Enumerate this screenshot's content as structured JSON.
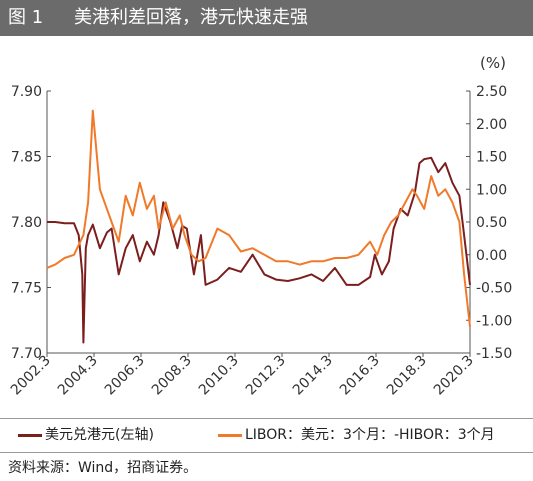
{
  "header": {
    "figure_no": "图 1",
    "title": "美港利差回落，港元快速走强"
  },
  "colors": {
    "hkd": "#7b1e1e",
    "spread": "#f07a2a",
    "title_bg": "#6b6b6b"
  },
  "chart_data": {
    "type": "line",
    "unit_right": "(%)",
    "x_tick_labels": [
      "2002.3",
      "2004.3",
      "2006.3",
      "2008.3",
      "2010.3",
      "2012.3",
      "2014.3",
      "2016.3",
      "2018.3",
      "2020.3"
    ],
    "x_range": [
      2002.25,
      2020.25
    ],
    "y_left": {
      "ticks": [
        "7.90",
        "7.85",
        "7.80",
        "7.75",
        "7.70"
      ],
      "range": [
        7.7,
        7.9
      ]
    },
    "y_right": {
      "ticks": [
        "2.50",
        "2.00",
        "1.50",
        "1.00",
        "0.50",
        "0.00",
        "-0.50",
        "-1.00",
        "-1.50"
      ],
      "range": [
        -1.5,
        2.5
      ]
    },
    "series": [
      {
        "name": "美元兑港元(左轴)",
        "axis": "left",
        "color": "#7b1e1e",
        "x": [
          2002.25,
          2002.6,
          2003.0,
          2003.4,
          2003.6,
          2003.75,
          2003.8,
          2003.9,
          2004.0,
          2004.2,
          2004.5,
          2004.8,
          2005.0,
          2005.3,
          2005.6,
          2005.9,
          2006.2,
          2006.5,
          2006.8,
          2007.0,
          2007.2,
          2007.5,
          2007.8,
          2008.0,
          2008.2,
          2008.5,
          2008.8,
          2009.0,
          2009.5,
          2010.0,
          2010.5,
          2011.0,
          2011.5,
          2012.0,
          2012.5,
          2013.0,
          2013.5,
          2014.0,
          2014.5,
          2015.0,
          2015.5,
          2016.0,
          2016.2,
          2016.5,
          2016.8,
          2017.0,
          2017.3,
          2017.6,
          2017.9,
          2018.1,
          2018.3,
          2018.6,
          2018.9,
          2019.2,
          2019.5,
          2019.8,
          2020.0,
          2020.25
        ],
        "y": [
          7.8,
          7.8,
          7.799,
          7.799,
          7.79,
          7.76,
          7.708,
          7.78,
          7.79,
          7.798,
          7.78,
          7.792,
          7.795,
          7.76,
          7.78,
          7.79,
          7.77,
          7.785,
          7.775,
          7.79,
          7.815,
          7.8,
          7.78,
          7.797,
          7.795,
          7.76,
          7.79,
          7.752,
          7.756,
          7.765,
          7.762,
          7.775,
          7.76,
          7.756,
          7.755,
          7.757,
          7.76,
          7.755,
          7.765,
          7.752,
          7.752,
          7.758,
          7.775,
          7.76,
          7.77,
          7.795,
          7.81,
          7.805,
          7.822,
          7.845,
          7.848,
          7.849,
          7.838,
          7.845,
          7.83,
          7.82,
          7.79,
          7.752
        ]
      },
      {
        "name": "LIBOR：美元：3个月：-HIBOR：3个月",
        "axis": "right",
        "color": "#f07a2a",
        "x": [
          2002.25,
          2002.6,
          2003.0,
          2003.4,
          2003.8,
          2004.0,
          2004.2,
          2004.5,
          2004.8,
          2005.0,
          2005.3,
          2005.6,
          2005.9,
          2006.2,
          2006.5,
          2006.8,
          2007.0,
          2007.3,
          2007.6,
          2007.9,
          2008.1,
          2008.4,
          2008.7,
          2009.0,
          2009.5,
          2010.0,
          2010.5,
          2011.0,
          2011.5,
          2012.0,
          2012.5,
          2013.0,
          2013.5,
          2014.0,
          2014.5,
          2015.0,
          2015.5,
          2016.0,
          2016.3,
          2016.6,
          2016.9,
          2017.2,
          2017.5,
          2017.8,
          2018.0,
          2018.3,
          2018.6,
          2018.9,
          2019.2,
          2019.5,
          2019.8,
          2020.0,
          2020.25
        ],
        "y": [
          -0.2,
          -0.15,
          -0.05,
          0.0,
          0.3,
          0.8,
          2.2,
          1.0,
          0.7,
          0.5,
          0.2,
          0.9,
          0.6,
          1.1,
          0.7,
          0.9,
          0.4,
          0.8,
          0.4,
          0.6,
          0.3,
          0.0,
          -0.1,
          -0.05,
          0.4,
          0.3,
          0.05,
          0.1,
          0.0,
          -0.1,
          -0.1,
          -0.15,
          -0.1,
          -0.1,
          -0.05,
          -0.05,
          0.0,
          0.2,
          0.0,
          0.3,
          0.5,
          0.6,
          0.8,
          1.0,
          0.9,
          0.7,
          1.2,
          0.9,
          1.0,
          0.8,
          0.5,
          -0.3,
          -1.1
        ]
      }
    ]
  },
  "legend": {
    "hkd_label": "美元兑港元(左轴)",
    "spread_label": "LIBOR：美元：3个月：-HIBOR：3个月"
  },
  "source": "资料来源：Wind，招商证券。"
}
